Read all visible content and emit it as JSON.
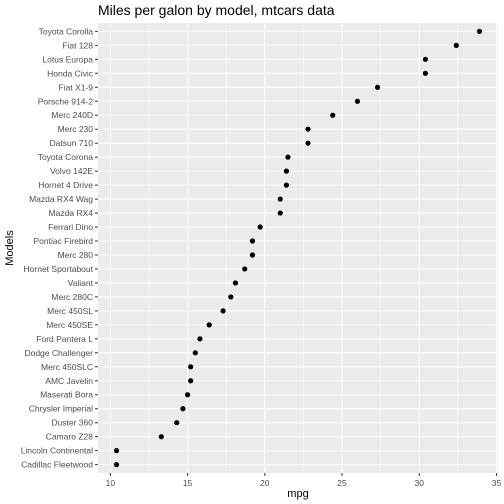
{
  "chart_data": {
    "type": "scatter",
    "title": "Miles per galon by model, mtcars data",
    "xlabel": "mpg",
    "ylabel": "Models",
    "xlim": [
      9.2,
      35.1
    ],
    "x_ticks": [
      10,
      15,
      20,
      25,
      30,
      35
    ],
    "grid": true,
    "legend": "none",
    "categories": [
      "Cadillac Fleetwood",
      "Lincoln Continental",
      "Camaro Z28",
      "Duster 360",
      "Chrysler Imperial",
      "Maserati Bora",
      "AMC Javelin",
      "Merc 450SLC",
      "Dodge Challenger",
      "Ford Pantera L",
      "Merc 450SE",
      "Merc 450SL",
      "Merc 280C",
      "Valiant",
      "Hornet Sportabout",
      "Merc 280",
      "Pontiac Firebird",
      "Ferrari Dino",
      "Mazda RX4",
      "Mazda RX4 Wag",
      "Hornet 4 Drive",
      "Volvo 142E",
      "Toyota Corona",
      "Datsun 710",
      "Merc 230",
      "Merc 240D",
      "Porsche 914-2",
      "Fiat X1-9",
      "Honda Civic",
      "Lotus Europa",
      "Fiat 128",
      "Toyota Corolla"
    ],
    "values": [
      10.4,
      10.4,
      13.3,
      14.3,
      14.7,
      15.0,
      15.2,
      15.2,
      15.5,
      15.8,
      16.4,
      17.3,
      17.8,
      18.1,
      18.7,
      19.2,
      19.2,
      19.7,
      21.0,
      21.0,
      21.4,
      21.4,
      21.5,
      22.8,
      22.8,
      24.4,
      26.0,
      27.3,
      30.4,
      30.4,
      32.4,
      33.9
    ]
  }
}
